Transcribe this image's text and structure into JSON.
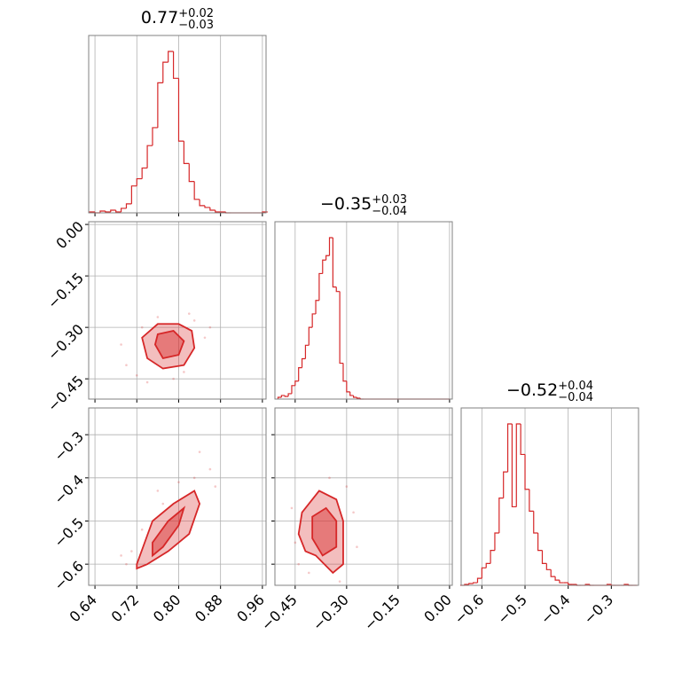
{
  "chart_data": [
    {
      "type": "histogram",
      "color": "#d62728",
      "title": {
        "value": "0.77",
        "plus": "+0.02",
        "minus": "−0.03"
      },
      "xlim": [
        0.628,
        0.967
      ],
      "xticks": [
        0.64,
        0.72,
        0.8,
        0.88,
        0.96
      ],
      "xlabels": false,
      "bins": [
        0.63,
        0.64,
        0.65,
        0.66,
        0.67,
        0.68,
        0.69,
        0.7,
        0.71,
        0.72,
        0.73,
        0.74,
        0.75,
        0.76,
        0.77,
        0.78,
        0.79,
        0.8,
        0.81,
        0.82,
        0.83,
        0.84,
        0.85,
        0.86,
        0.87,
        0.88,
        0.89,
        0.9,
        0.91,
        0.92,
        0.93,
        0.94,
        0.95,
        0.96,
        0.97
      ],
      "values": [
        1,
        0,
        2,
        1,
        3,
        1,
        5,
        10,
        30,
        38,
        50,
        75,
        95,
        145,
        168,
        180,
        150,
        80,
        55,
        35,
        15,
        8,
        6,
        3,
        1,
        1,
        0,
        0,
        0,
        0,
        0,
        0,
        0,
        1
      ]
    },
    {
      "type": "contour",
      "color": "#d62728",
      "xlim": [
        0.628,
        0.967
      ],
      "xticks": [
        0.64,
        0.72,
        0.8,
        0.88,
        0.96
      ],
      "xlabels": false,
      "ylim": [
        -0.509,
        0.008
      ],
      "ylabels": true,
      "yticks": [
        {
          "value": 0,
          "label": "0.00"
        },
        {
          "value": -0.15,
          "label": "−0.15"
        },
        {
          "value": -0.3,
          "label": "−0.30"
        },
        {
          "value": -0.45,
          "label": "−0.45"
        }
      ],
      "points": {
        "x": [
          0.7,
          0.72,
          0.74,
          0.83,
          0.85,
          0.76,
          0.81,
          0.69,
          0.79,
          0.86,
          0.73,
          0.82
        ],
        "y": [
          -0.41,
          -0.44,
          -0.46,
          -0.28,
          -0.33,
          -0.27,
          -0.43,
          -0.35,
          -0.45,
          -0.3,
          -0.3,
          -0.26
        ]
      },
      "contours": [
        {
          "x": [
            0.73,
            0.76,
            0.8,
            0.825,
            0.83,
            0.81,
            0.77,
            0.74,
            0.73
          ],
          "y": [
            -0.33,
            -0.29,
            -0.29,
            -0.31,
            -0.36,
            -0.41,
            -0.42,
            -0.39,
            -0.33
          ]
        },
        {
          "x": [
            0.76,
            0.79,
            0.81,
            0.8,
            0.77,
            0.755
          ],
          "y": [
            -0.32,
            -0.31,
            -0.34,
            -0.38,
            -0.39,
            -0.35
          ]
        }
      ]
    },
    {
      "type": "histogram",
      "color": "#d62728",
      "title": {
        "value": "−0.35",
        "plus": "+0.03",
        "minus": "−0.04"
      },
      "xlim": [
        -0.509,
        0.008
      ],
      "xticks": [
        0,
        -0.15,
        -0.3,
        -0.45
      ],
      "xlabels": false,
      "bins": [
        -0.5,
        -0.49,
        -0.48,
        -0.47,
        -0.46,
        -0.45,
        -0.44,
        -0.43,
        -0.42,
        -0.41,
        -0.4,
        -0.39,
        -0.38,
        -0.37,
        -0.36,
        -0.35,
        -0.34,
        -0.33,
        -0.32,
        -0.31,
        -0.3,
        -0.29,
        -0.28,
        -0.27,
        -0.26,
        -0.25,
        -0.24,
        -0.23,
        -0.22,
        -0.21,
        -0.2,
        -0.19,
        -0.18,
        -0.17,
        -0.16,
        -0.15,
        -0.14,
        -0.13,
        -0.12,
        -0.11,
        -0.1,
        -0.09,
        -0.08,
        -0.07,
        -0.06,
        -0.05,
        -0.04,
        -0.03,
        -0.02,
        -0.01,
        0.0
      ],
      "values": [
        2,
        4,
        3,
        6,
        15,
        20,
        35,
        45,
        60,
        80,
        95,
        110,
        140,
        155,
        160,
        180,
        125,
        120,
        40,
        20,
        8,
        4,
        2,
        1,
        0,
        0,
        0,
        0,
        0,
        0,
        0,
        0,
        0,
        0,
        0,
        0,
        0,
        0,
        0,
        0,
        0,
        0,
        0,
        0,
        0,
        0,
        0,
        0,
        0,
        0
      ]
    },
    {
      "type": "contour",
      "color": "#d62728",
      "xlim": [
        0.628,
        0.967
      ],
      "xlabels": true,
      "xticks": [
        0.64,
        0.72,
        {
          "value": 0.8,
          "label": "0.80"
        },
        0.88,
        0.96
      ],
      "ylim": [
        -0.649,
        -0.238
      ],
      "ylabels": true,
      "yticks": [
        {
          "value": -0.3,
          "label": "−0.3"
        },
        {
          "value": -0.4,
          "label": "−0.4"
        },
        {
          "value": -0.5,
          "label": "−0.5"
        },
        {
          "value": -0.6,
          "label": "−0.6"
        }
      ],
      "points": {
        "x": [
          0.7,
          0.71,
          0.86,
          0.84,
          0.83,
          0.76,
          0.73,
          0.87,
          0.8,
          0.69,
          0.77
        ],
        "y": [
          -0.6,
          -0.57,
          -0.38,
          -0.34,
          -0.4,
          -0.43,
          -0.52,
          -0.42,
          -0.41,
          -0.58,
          -0.46
        ]
      },
      "contours": [
        {
          "x": [
            0.72,
            0.75,
            0.79,
            0.83,
            0.84,
            0.82,
            0.78,
            0.74,
            0.72
          ],
          "y": [
            -0.6,
            -0.5,
            -0.46,
            -0.43,
            -0.46,
            -0.53,
            -0.57,
            -0.6,
            -0.61
          ]
        },
        {
          "x": [
            0.75,
            0.78,
            0.81,
            0.8,
            0.77,
            0.75
          ],
          "y": [
            -0.55,
            -0.5,
            -0.47,
            -0.51,
            -0.56,
            -0.58
          ]
        }
      ]
    },
    {
      "type": "contour",
      "color": "#d62728",
      "xlim": [
        -0.509,
        0.008
      ],
      "xlabels": true,
      "xticks": [
        {
          "value": -0.45,
          "label": "−0.45"
        },
        {
          "value": -0.3,
          "label": "−0.30"
        },
        {
          "value": -0.15,
          "label": "−0.15"
        },
        {
          "value": 0,
          "label": "0.00"
        }
      ],
      "ylim": [
        -0.649,
        -0.238
      ],
      "yticks": [
        -0.3,
        -0.4,
        -0.5,
        -0.6
      ],
      "ylabels": false,
      "points": {
        "x": [
          -0.46,
          -0.45,
          -0.3,
          -0.28,
          -0.44,
          -0.32,
          -0.35,
          -0.41,
          -0.27
        ],
        "y": [
          -0.47,
          -0.55,
          -0.42,
          -0.48,
          -0.6,
          -0.64,
          -0.4,
          -0.62,
          -0.56
        ]
      },
      "contours": [
        {
          "x": [
            -0.43,
            -0.38,
            -0.33,
            -0.31,
            -0.31,
            -0.34,
            -0.39,
            -0.42,
            -0.44,
            -0.43
          ],
          "y": [
            -0.48,
            -0.43,
            -0.45,
            -0.5,
            -0.6,
            -0.62,
            -0.58,
            -0.57,
            -0.53,
            -0.48
          ]
        },
        {
          "x": [
            -0.4,
            -0.36,
            -0.33,
            -0.33,
            -0.37,
            -0.4
          ],
          "y": [
            -0.49,
            -0.47,
            -0.5,
            -0.56,
            -0.58,
            -0.54
          ]
        }
      ]
    },
    {
      "type": "histogram",
      "color": "#d62728",
      "title": {
        "value": "−0.52",
        "plus": "+0.04",
        "minus": "−0.04"
      },
      "xlim": [
        -0.648,
        -0.237
      ],
      "xlabels": true,
      "xticks": [
        {
          "value": -0.6,
          "label": "−0.6"
        },
        {
          "value": -0.5,
          "label": "−0.5"
        },
        {
          "value": -0.4,
          "label": "−0.4"
        },
        {
          "value": -0.3,
          "label": "−0.3"
        }
      ],
      "bins": [
        -0.65,
        -0.64,
        -0.63,
        -0.62,
        -0.61,
        -0.6,
        -0.59,
        -0.58,
        -0.57,
        -0.56,
        -0.55,
        -0.54,
        -0.53,
        -0.52,
        -0.51,
        -0.5,
        -0.49,
        -0.48,
        -0.47,
        -0.46,
        -0.45,
        -0.44,
        -0.43,
        -0.42,
        -0.41,
        -0.4,
        -0.39,
        -0.38,
        -0.37,
        -0.36,
        -0.35,
        -0.34,
        -0.33,
        -0.32,
        -0.31,
        -0.3,
        -0.29,
        -0.28,
        -0.27,
        -0.26,
        -0.25,
        -0.24
      ],
      "values": [
        0,
        1,
        2,
        3,
        8,
        20,
        25,
        40,
        60,
        100,
        130,
        185,
        90,
        185,
        150,
        110,
        85,
        60,
        40,
        25,
        18,
        10,
        6,
        3,
        3,
        1,
        1,
        0,
        0,
        1,
        0,
        0,
        0,
        0,
        1,
        0,
        0,
        0,
        1,
        0,
        0
      ]
    }
  ]
}
